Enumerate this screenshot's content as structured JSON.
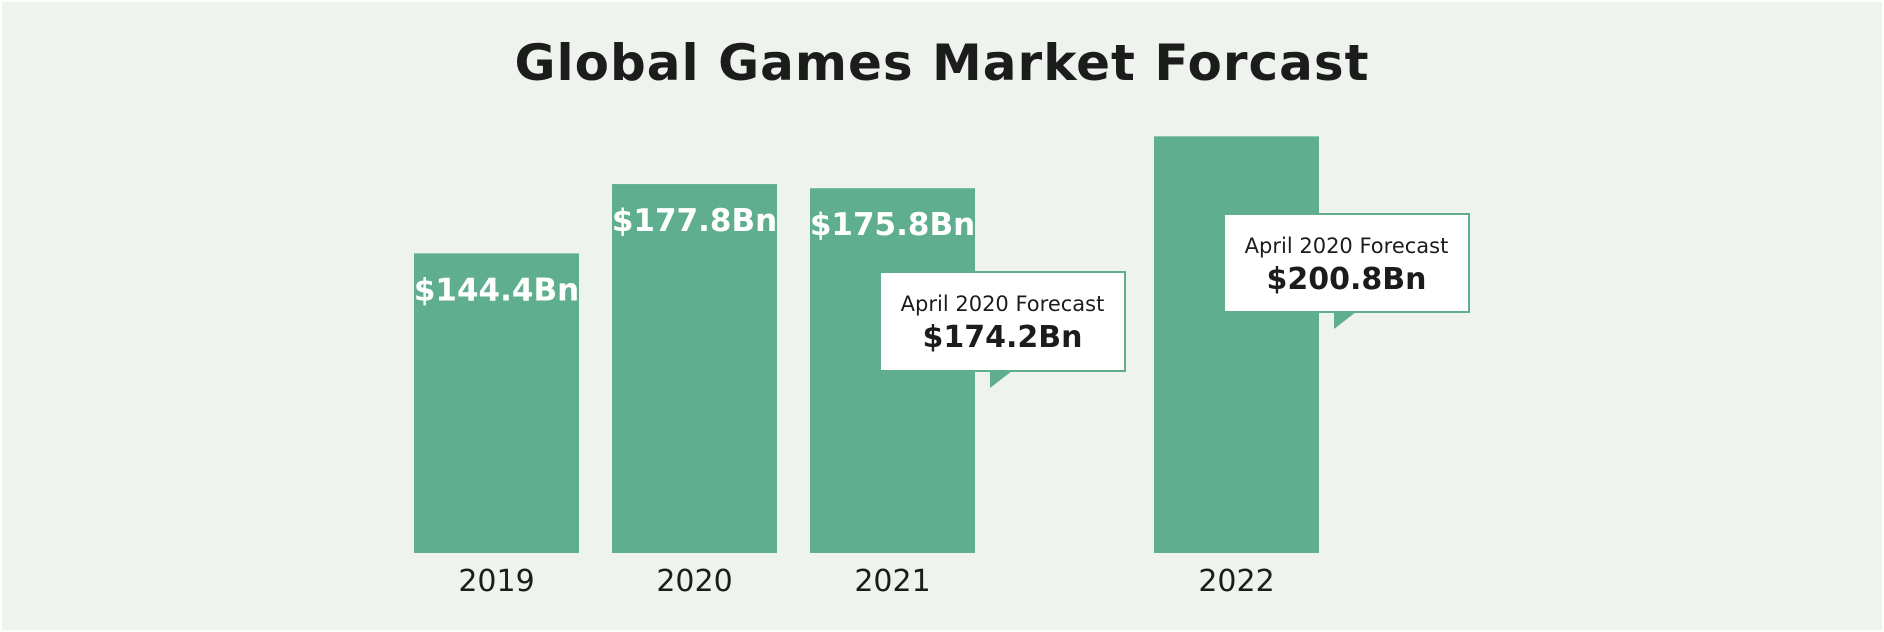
{
  "colors": {
    "background": "#eef3ee",
    "bar": "#5fae8f",
    "title": "#1c1c1c",
    "callout_border": "#5fae8f",
    "callout_fill": "#ffffff"
  },
  "chart_data": {
    "type": "bar",
    "title": "Global Games Market Forcast",
    "xlabel": "",
    "ylabel": "",
    "unit": "$Bn",
    "categories": [
      "2019",
      "2020",
      "2021",
      "2022"
    ],
    "values": [
      144.4,
      177.8,
      175.8,
      200.8
    ],
    "value_labels": [
      "$144.4Bn",
      "$177.8Bn",
      "$175.8Bn",
      ""
    ],
    "grid": false,
    "legend": "none",
    "annotations": [
      {
        "category": "2021",
        "label": "April 2020 Forecast",
        "value": 174.2,
        "value_text": "$174.2Bn"
      },
      {
        "category": "2022",
        "label": "April 2020 Forecast",
        "value": 200.8,
        "value_text": "$200.8Bn"
      }
    ]
  }
}
